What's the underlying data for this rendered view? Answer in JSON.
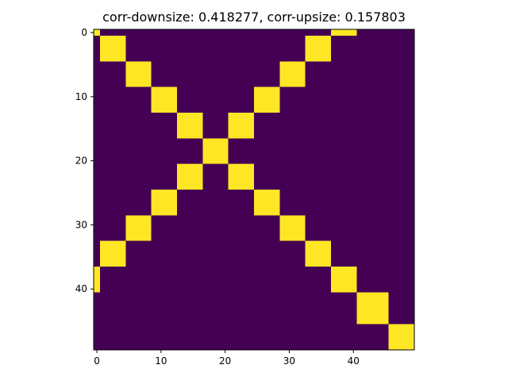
{
  "chart_data": {
    "type": "heatmap",
    "title": "corr-downsize: 0.418277, corr-upsize: 0.157803",
    "xlabel": "",
    "ylabel": "",
    "x_range": [
      -0.5,
      49.5
    ],
    "y_range": [
      -0.5,
      49.5
    ],
    "x_ticks": [
      0,
      10,
      20,
      30,
      40
    ],
    "y_ticks": [
      0,
      10,
      20,
      30,
      40
    ],
    "colormap": "viridis",
    "value_range": [
      0,
      1
    ],
    "colors": {
      "low": "#440154",
      "high": "#fde725"
    },
    "background_value": 0,
    "high_cells": [
      {
        "row_start": 0,
        "row_end": 0,
        "col_start": 0,
        "col_end": 0,
        "value": 1
      },
      {
        "row_start": 0,
        "row_end": 0,
        "col_start": 37,
        "col_end": 40,
        "value": 1
      },
      {
        "row_start": 1,
        "row_end": 4,
        "col_start": 1,
        "col_end": 4,
        "value": 1
      },
      {
        "row_start": 1,
        "row_end": 4,
        "col_start": 33,
        "col_end": 36,
        "value": 1
      },
      {
        "row_start": 5,
        "row_end": 8,
        "col_start": 5,
        "col_end": 8,
        "value": 1
      },
      {
        "row_start": 5,
        "row_end": 8,
        "col_start": 29,
        "col_end": 32,
        "value": 1
      },
      {
        "row_start": 9,
        "row_end": 12,
        "col_start": 9,
        "col_end": 12,
        "value": 1
      },
      {
        "row_start": 9,
        "row_end": 12,
        "col_start": 25,
        "col_end": 28,
        "value": 1
      },
      {
        "row_start": 13,
        "row_end": 16,
        "col_start": 13,
        "col_end": 16,
        "value": 1
      },
      {
        "row_start": 13,
        "row_end": 16,
        "col_start": 21,
        "col_end": 24,
        "value": 1
      },
      {
        "row_start": 17,
        "row_end": 20,
        "col_start": 17,
        "col_end": 20,
        "value": 1
      },
      {
        "row_start": 21,
        "row_end": 24,
        "col_start": 13,
        "col_end": 16,
        "value": 1
      },
      {
        "row_start": 21,
        "row_end": 24,
        "col_start": 21,
        "col_end": 24,
        "value": 1
      },
      {
        "row_start": 25,
        "row_end": 28,
        "col_start": 9,
        "col_end": 12,
        "value": 1
      },
      {
        "row_start": 25,
        "row_end": 28,
        "col_start": 25,
        "col_end": 28,
        "value": 1
      },
      {
        "row_start": 29,
        "row_end": 32,
        "col_start": 5,
        "col_end": 8,
        "value": 1
      },
      {
        "row_start": 29,
        "row_end": 32,
        "col_start": 29,
        "col_end": 32,
        "value": 1
      },
      {
        "row_start": 33,
        "row_end": 36,
        "col_start": 1,
        "col_end": 4,
        "value": 1
      },
      {
        "row_start": 33,
        "row_end": 36,
        "col_start": 33,
        "col_end": 36,
        "value": 1
      },
      {
        "row_start": 37,
        "row_end": 40,
        "col_start": 0,
        "col_end": 0,
        "value": 1
      },
      {
        "row_start": 37,
        "row_end": 40,
        "col_start": 37,
        "col_end": 40,
        "value": 1
      },
      {
        "row_start": 41,
        "row_end": 45,
        "col_start": 41,
        "col_end": 45,
        "value": 1
      },
      {
        "row_start": 46,
        "row_end": 49,
        "col_start": 46,
        "col_end": 49,
        "value": 1
      }
    ]
  }
}
